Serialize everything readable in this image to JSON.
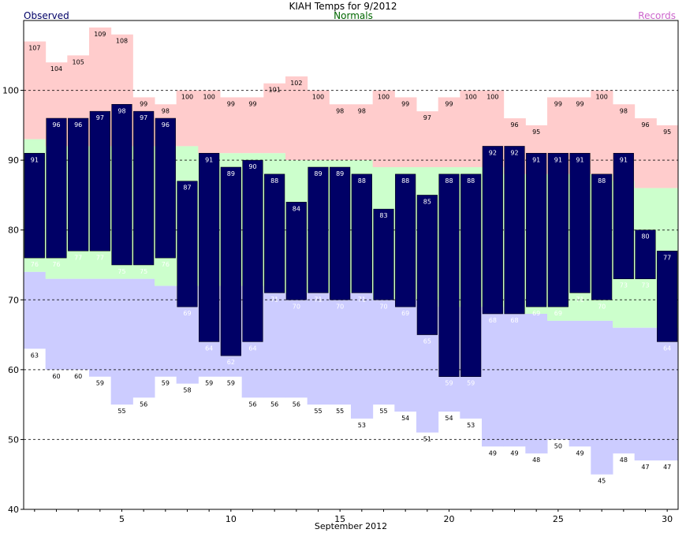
{
  "chart_data": {
    "type": "bar",
    "title": "KIAH Temps for 9/2012",
    "xlabel": "September 2012",
    "ylabel": "",
    "ylim": [
      40,
      110
    ],
    "xlim": [
      1,
      30
    ],
    "x_ticks": [
      5,
      10,
      15,
      20,
      25,
      30
    ],
    "y_ticks": [
      40,
      50,
      60,
      70,
      80,
      90,
      100
    ],
    "legend": {
      "observed": "Observed",
      "normals": "Normals",
      "records": "Records"
    },
    "colors": {
      "observed": "#000066",
      "normals_band": "#ccffcc",
      "normals_label": "#006600",
      "records_high": "#ffcccc",
      "records_low": "#ccccff",
      "records_label": "#cc66cc",
      "observed_label": "#000066",
      "grid": "#000000"
    },
    "grid": "dashed-horizontal",
    "days": [
      1,
      2,
      3,
      4,
      5,
      6,
      7,
      8,
      9,
      10,
      11,
      12,
      13,
      14,
      15,
      16,
      17,
      18,
      19,
      20,
      21,
      22,
      23,
      24,
      25,
      26,
      27,
      28,
      29,
      30
    ],
    "observed_high": [
      91,
      96,
      96,
      97,
      98,
      97,
      96,
      87,
      91,
      89,
      90,
      88,
      84,
      89,
      89,
      88,
      83,
      88,
      85,
      88,
      88,
      92,
      92,
      91,
      91,
      91,
      88,
      91,
      80,
      77
    ],
    "observed_low": [
      76,
      76,
      77,
      77,
      75,
      75,
      76,
      69,
      64,
      62,
      64,
      71,
      70,
      71,
      70,
      71,
      70,
      69,
      65,
      59,
      59,
      68,
      68,
      69,
      69,
      71,
      70,
      73,
      73,
      64
    ],
    "record_high": [
      107,
      104,
      105,
      109,
      108,
      99,
      98,
      100,
      100,
      99,
      99,
      101,
      102,
      100,
      98,
      98,
      100,
      99,
      97,
      99,
      100,
      100,
      96,
      95,
      99,
      99,
      100,
      98,
      96,
      95
    ],
    "record_low": [
      63,
      60,
      60,
      59,
      55,
      56,
      59,
      58,
      59,
      59,
      56,
      56,
      56,
      55,
      55,
      53,
      55,
      54,
      51,
      54,
      53,
      49,
      49,
      48,
      50,
      49,
      45,
      48,
      47,
      47
    ],
    "normal_high": [
      93,
      92,
      92,
      92,
      92,
      92,
      92,
      92,
      91,
      91,
      91,
      91,
      90,
      90,
      90,
      90,
      89,
      89,
      89,
      89,
      89,
      89,
      88,
      88,
      88,
      88,
      88,
      87,
      86,
      86
    ],
    "normal_low": [
      74,
      73,
      73,
      73,
      73,
      73,
      72,
      72,
      72,
      72,
      72,
      71,
      71,
      71,
      71,
      71,
      70,
      70,
      70,
      69,
      69,
      69,
      68,
      68,
      67,
      67,
      67,
      66,
      66,
      66
    ]
  }
}
